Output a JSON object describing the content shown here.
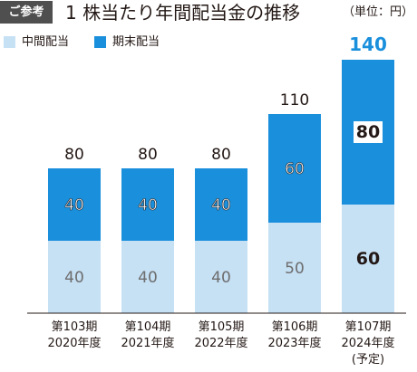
{
  "header": {
    "badge": "ご参考",
    "title": "1 株当たり年間配当金の推移",
    "unit": "（単位：円）"
  },
  "legend": [
    {
      "label": "中間配当",
      "color": "#c6e0f4"
    },
    {
      "label": "期末配当",
      "color": "#1a8fdc"
    }
  ],
  "chart_data": {
    "type": "bar",
    "stacked": true,
    "categories": [
      [
        "第103期",
        "2020年度"
      ],
      [
        "第104期",
        "2021年度"
      ],
      [
        "第105期",
        "2022年度"
      ],
      [
        "第106期",
        "2023年度"
      ],
      [
        "第107期",
        "2024年度",
        "(予定)"
      ]
    ],
    "series": [
      {
        "name": "中間配当",
        "values": [
          40,
          40,
          40,
          50,
          60
        ],
        "color": "#c6e0f4"
      },
      {
        "name": "期末配当",
        "values": [
          40,
          40,
          40,
          60,
          80
        ],
        "color": "#1a8fdc"
      }
    ],
    "totals": [
      80,
      80,
      80,
      110,
      140
    ],
    "total_colors": [
      "#231815",
      "#231815",
      "#231815",
      "#231815",
      "#1a8fdc"
    ],
    "ylim": [
      0,
      150
    ],
    "grid": false,
    "legend_position": "top-left"
  }
}
